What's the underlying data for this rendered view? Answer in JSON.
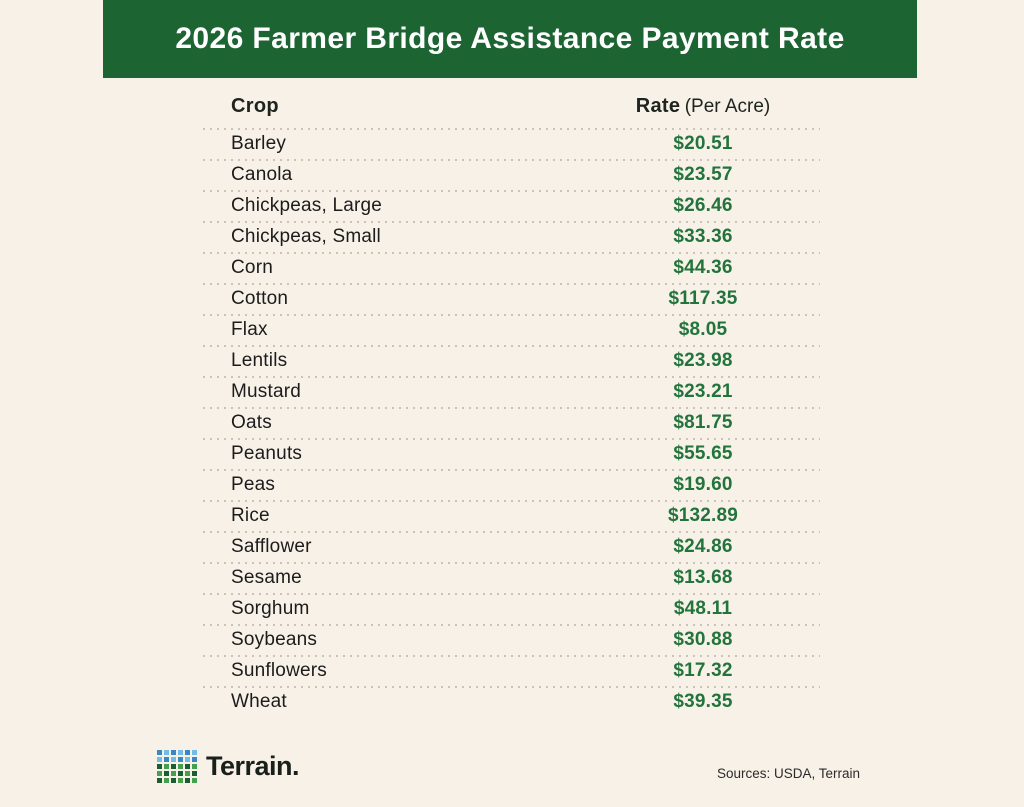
{
  "colors": {
    "page_bg": "#f7f1e8",
    "banner_bg": "#1d6433",
    "banner_text": "#ffffff",
    "heading_text": "#20241f",
    "crop_text": "#1c1c1c",
    "rate_text": "#23743c",
    "divider": "#c9c4ba",
    "sources_text": "#2b2b2b",
    "logo_text": "#182019"
  },
  "header": {
    "title": "2026 Farmer Bridge Assistance Payment Rate"
  },
  "table": {
    "columns": {
      "crop": "Crop",
      "rate": "Rate",
      "rate_unit": "(Per Acre)"
    },
    "rows": [
      {
        "crop": "Barley",
        "rate": "$20.51"
      },
      {
        "crop": "Canola",
        "rate": "$23.57"
      },
      {
        "crop": "Chickpeas, Large",
        "rate": "$26.46"
      },
      {
        "crop": "Chickpeas, Small",
        "rate": "$33.36"
      },
      {
        "crop": "Corn",
        "rate": "$44.36"
      },
      {
        "crop": "Cotton",
        "rate": "$117.35"
      },
      {
        "crop": "Flax",
        "rate": "$8.05"
      },
      {
        "crop": "Lentils",
        "rate": "$23.98"
      },
      {
        "crop": "Mustard",
        "rate": "$23.21"
      },
      {
        "crop": "Oats",
        "rate": "$81.75"
      },
      {
        "crop": "Peanuts",
        "rate": "$55.65"
      },
      {
        "crop": "Peas",
        "rate": "$19.60"
      },
      {
        "crop": "Rice",
        "rate": "$132.89"
      },
      {
        "crop": "Safflower",
        "rate": "$24.86"
      },
      {
        "crop": "Sesame",
        "rate": "$13.68"
      },
      {
        "crop": "Sorghum",
        "rate": "$48.11"
      },
      {
        "crop": "Soybeans",
        "rate": "$30.88"
      },
      {
        "crop": "Sunflowers",
        "rate": "$17.32"
      },
      {
        "crop": "Wheat",
        "rate": "$39.35"
      }
    ]
  },
  "footer": {
    "logo_text": "Terrain.",
    "sources": "Sources: USDA, Terrain",
    "logo_colors": {
      "blue_dark": "#3a87c8",
      "blue_light": "#6fbde8",
      "green_dark": "#1c5c33",
      "green_light": "#43a04f"
    }
  },
  "chart_data": {
    "type": "table",
    "title": "2026 Farmer Bridge Assistance Payment Rate",
    "columns": [
      "Crop",
      "Rate (Per Acre)"
    ],
    "categories": [
      "Barley",
      "Canola",
      "Chickpeas, Large",
      "Chickpeas, Small",
      "Corn",
      "Cotton",
      "Flax",
      "Lentils",
      "Mustard",
      "Oats",
      "Peanuts",
      "Peas",
      "Rice",
      "Safflower",
      "Sesame",
      "Sorghum",
      "Soybeans",
      "Sunflowers",
      "Wheat"
    ],
    "values": [
      20.51,
      23.57,
      26.46,
      33.36,
      44.36,
      117.35,
      8.05,
      23.98,
      23.21,
      81.75,
      55.65,
      19.6,
      132.89,
      24.86,
      13.68,
      48.11,
      30.88,
      17.32,
      39.35
    ],
    "unit": "USD per acre",
    "sources": "USDA, Terrain"
  }
}
